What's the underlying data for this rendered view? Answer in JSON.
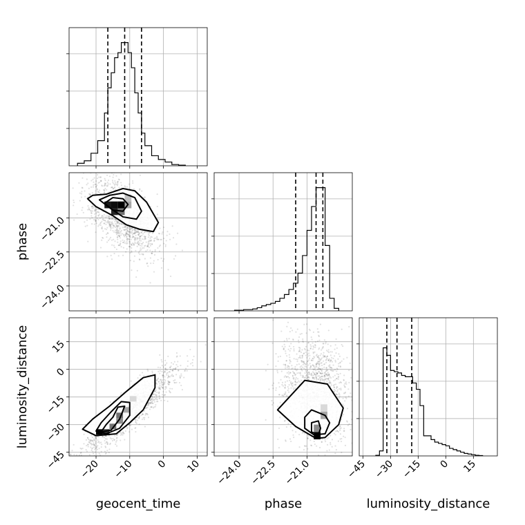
{
  "chart_data": {
    "type": "corner",
    "parameters": [
      "geocent_time",
      "phase",
      "luminosity_distance"
    ],
    "ranges": {
      "geocent_time": [
        -28,
        13
      ],
      "phase": [
        -25.1,
        -19.0
      ],
      "luminosity_distance": [
        -47,
        28
      ]
    },
    "ticks": {
      "geocent_time": [
        -20,
        -10,
        0,
        10
      ],
      "phase": [
        -24.0,
        -22.5,
        -21.0
      ],
      "luminosity_distance": [
        -45,
        -30,
        -15,
        0,
        15
      ]
    },
    "tick_labels": {
      "geocent_time": [
        "−20",
        "−10",
        "0",
        "10"
      ],
      "phase": [
        "−24.0",
        "−22.5",
        "−21.0"
      ],
      "luminosity_distance": [
        "−45",
        "−30",
        "−15",
        "0",
        "15"
      ]
    },
    "grid": true,
    "histograms": {
      "geocent_time": {
        "edges": [
          -25.5,
          -23.5,
          -21.5,
          -19.5,
          -17.5,
          -16.5,
          -15.5,
          -14.5,
          -13.5,
          -12.5,
          -11.5,
          -10.5,
          -9.5,
          -8.5,
          -7.5,
          -6.5,
          -5.5,
          -3.5,
          -1.5,
          0.5,
          2.5,
          4.5,
          6.5
        ],
        "counts": [
          0.02,
          0.04,
          0.1,
          0.2,
          0.42,
          0.62,
          0.74,
          0.86,
          0.9,
          0.98,
          0.98,
          0.9,
          0.78,
          0.58,
          0.42,
          0.26,
          0.16,
          0.08,
          0.05,
          0.03,
          0.01,
          0.005
        ],
        "quantiles": [
          -16.5,
          -11.5,
          -6.5
        ]
      },
      "phase": {
        "edges": [
          -24.2,
          -23.8,
          -23.4,
          -23.2,
          -23.0,
          -22.8,
          -22.6,
          -22.4,
          -22.2,
          -22.0,
          -21.8,
          -21.6,
          -21.4,
          -21.2,
          -21.0,
          -20.8,
          -20.6,
          -20.4,
          -20.2,
          -20.0,
          -19.8,
          -19.6
        ],
        "counts": [
          0.005,
          0.01,
          0.015,
          0.025,
          0.04,
          0.05,
          0.06,
          0.075,
          0.1,
          0.13,
          0.17,
          0.22,
          0.3,
          0.44,
          0.64,
          0.83,
          0.98,
          0.98,
          0.52,
          0.1,
          0.02
        ],
        "quantiles": [
          -21.5,
          -20.6,
          -20.3
        ]
      },
      "luminosity_distance": {
        "edges": [
          -38,
          -36,
          -34,
          -32,
          -30,
          -28,
          -26,
          -24,
          -22,
          -20,
          -18,
          -16,
          -14,
          -12,
          -10,
          -8,
          -6,
          -4,
          -2,
          0,
          2,
          4,
          6,
          8,
          10,
          12,
          14,
          16,
          18,
          20
        ],
        "counts": [
          0.005,
          0.04,
          0.86,
          0.8,
          0.68,
          0.67,
          0.66,
          0.64,
          0.63,
          0.63,
          0.58,
          0.53,
          0.4,
          0.16,
          0.16,
          0.13,
          0.11,
          0.1,
          0.09,
          0.08,
          0.06,
          0.05,
          0.04,
          0.03,
          0.02,
          0.015,
          0.01,
          0.005,
          0.003
        ],
        "quantiles": [
          -32,
          -26.5,
          -18.5
        ]
      }
    },
    "pair_panels": [
      {
        "x": "geocent_time",
        "y": "phase",
        "cloud": {
          "center": [
            -12,
            -20.9
          ],
          "spread": [
            5.5,
            0.85
          ],
          "rho": -0.55
        },
        "density_cells": [
          {
            "x": -16.5,
            "y": -20.42,
            "w": 2,
            "h": 0.3,
            "level": 0.9
          },
          {
            "x": -14.5,
            "y": -20.42,
            "w": 2,
            "h": 0.3,
            "level": 0.95
          },
          {
            "x": -12.5,
            "y": -20.42,
            "w": 2,
            "h": 0.3,
            "level": 1.0
          },
          {
            "x": -14.5,
            "y": -20.72,
            "w": 2,
            "h": 0.3,
            "level": 0.85
          },
          {
            "x": -12.5,
            "y": -20.72,
            "w": 2,
            "h": 0.3,
            "level": 0.55
          },
          {
            "x": -10.5,
            "y": -20.42,
            "w": 2,
            "h": 0.3,
            "level": 0.35
          },
          {
            "x": -10.5,
            "y": -20.12,
            "w": 2,
            "h": 0.3,
            "level": 0.25
          }
        ],
        "contours": [
          [
            [
              -22.5,
              -20.15
            ],
            [
              -21,
              -20.0
            ],
            [
              -17,
              -19.95
            ],
            [
              -12,
              -19.7
            ],
            [
              -8.5,
              -19.8
            ],
            [
              -5,
              -20.3
            ],
            [
              -1.5,
              -21.2
            ],
            [
              -3,
              -21.6
            ],
            [
              -7,
              -21.5
            ],
            [
              -11,
              -21.3
            ],
            [
              -15,
              -20.9
            ],
            [
              -20,
              -20.5
            ],
            [
              -22.5,
              -20.15
            ]
          ],
          [
            [
              -19,
              -20.2
            ],
            [
              -16,
              -20.0
            ],
            [
              -12,
              -19.9
            ],
            [
              -8.5,
              -20.1
            ],
            [
              -6.5,
              -20.7
            ],
            [
              -8,
              -21.05
            ],
            [
              -12,
              -20.95
            ],
            [
              -15.5,
              -20.6
            ],
            [
              -19,
              -20.2
            ]
          ],
          [
            [
              -17.5,
              -20.35
            ],
            [
              -15,
              -20.1
            ],
            [
              -12,
              -20.15
            ],
            [
              -10.5,
              -20.4
            ],
            [
              -12,
              -20.7
            ],
            [
              -15,
              -20.65
            ],
            [
              -17.5,
              -20.35
            ]
          ]
        ]
      },
      {
        "x": "geocent_time",
        "y": "luminosity_distance",
        "cloud": {
          "center": [
            -10,
            -22
          ],
          "spread": [
            7,
            11.5
          ],
          "rho": 0.9
        },
        "density_cells": [
          {
            "x": -19,
            "y": -34,
            "w": 2,
            "h": 3,
            "level": 1.0
          },
          {
            "x": -17,
            "y": -34,
            "w": 2,
            "h": 3,
            "level": 0.8
          },
          {
            "x": -15,
            "y": -31,
            "w": 2,
            "h": 3,
            "level": 0.55
          },
          {
            "x": -13,
            "y": -28,
            "w": 2,
            "h": 3,
            "level": 0.45
          },
          {
            "x": -13,
            "y": -25,
            "w": 2,
            "h": 3,
            "level": 0.55
          },
          {
            "x": -11,
            "y": -22,
            "w": 2,
            "h": 3,
            "level": 0.35
          },
          {
            "x": -9,
            "y": -16,
            "w": 2,
            "h": 3,
            "level": 0.15
          }
        ],
        "contours": [
          [
            [
              -24,
              -32.5
            ],
            [
              -20,
              -36
            ],
            [
              -14,
              -35
            ],
            [
              -10,
              -29
            ],
            [
              -6,
              -22
            ],
            [
              -2.5,
              -10
            ],
            [
              -2.5,
              -3
            ],
            [
              -6,
              -4.5
            ],
            [
              -11,
              -12
            ],
            [
              -16,
              -20
            ],
            [
              -21,
              -27
            ],
            [
              -24,
              -32.5
            ]
          ],
          [
            [
              -20,
              -33.5
            ],
            [
              -17,
              -35
            ],
            [
              -13,
              -32
            ],
            [
              -10,
              -25
            ],
            [
              -10,
              -18
            ],
            [
              -12.5,
              -17.5
            ],
            [
              -15.5,
              -23
            ],
            [
              -18.5,
              -29
            ],
            [
              -20,
              -33.5
            ]
          ],
          [
            [
              -18.5,
              -34
            ],
            [
              -15.5,
              -33
            ],
            [
              -13,
              -27
            ],
            [
              -11.5,
              -20
            ],
            [
              -13.5,
              -20.5
            ],
            [
              -15,
              -26
            ],
            [
              -17,
              -30
            ],
            [
              -18.5,
              -34
            ]
          ]
        ]
      },
      {
        "x": "phase",
        "y": "luminosity_distance",
        "cloud": {
          "center": [
            -20.7,
            -12
          ],
          "spread": [
            0.75,
            15
          ],
          "rho": -0.15
        },
        "density_cells": [
          {
            "x": -20.55,
            "y": -36,
            "w": 0.3,
            "h": 4,
            "level": 1.0
          },
          {
            "x": -20.55,
            "y": -32,
            "w": 0.3,
            "h": 4,
            "level": 0.45
          },
          {
            "x": -20.25,
            "y": -25,
            "w": 0.3,
            "h": 4,
            "level": 0.35
          },
          {
            "x": -20.25,
            "y": -21,
            "w": 0.3,
            "h": 4,
            "level": 0.15
          }
        ],
        "contours": [
          [
            [
              -22.3,
              -22
            ],
            [
              -21.1,
              -6
            ],
            [
              -20.1,
              -8
            ],
            [
              -19.4,
              -21
            ],
            [
              -19.6,
              -30
            ],
            [
              -20.2,
              -37
            ],
            [
              -20.6,
              -37.5
            ],
            [
              -21.5,
              -31
            ],
            [
              -22.3,
              -22
            ]
          ],
          [
            [
              -21.1,
              -26
            ],
            [
              -20.8,
              -22
            ],
            [
              -20.2,
              -25
            ],
            [
              -20.0,
              -29
            ],
            [
              -20.2,
              -35
            ],
            [
              -20.7,
              -35.5
            ],
            [
              -21.1,
              -32
            ],
            [
              -21.1,
              -26
            ]
          ],
          [
            [
              -20.8,
              -29
            ],
            [
              -20.5,
              -28
            ],
            [
              -20.4,
              -32
            ],
            [
              -20.5,
              -35.5
            ],
            [
              -20.8,
              -34
            ],
            [
              -20.8,
              -29
            ]
          ]
        ]
      }
    ]
  }
}
